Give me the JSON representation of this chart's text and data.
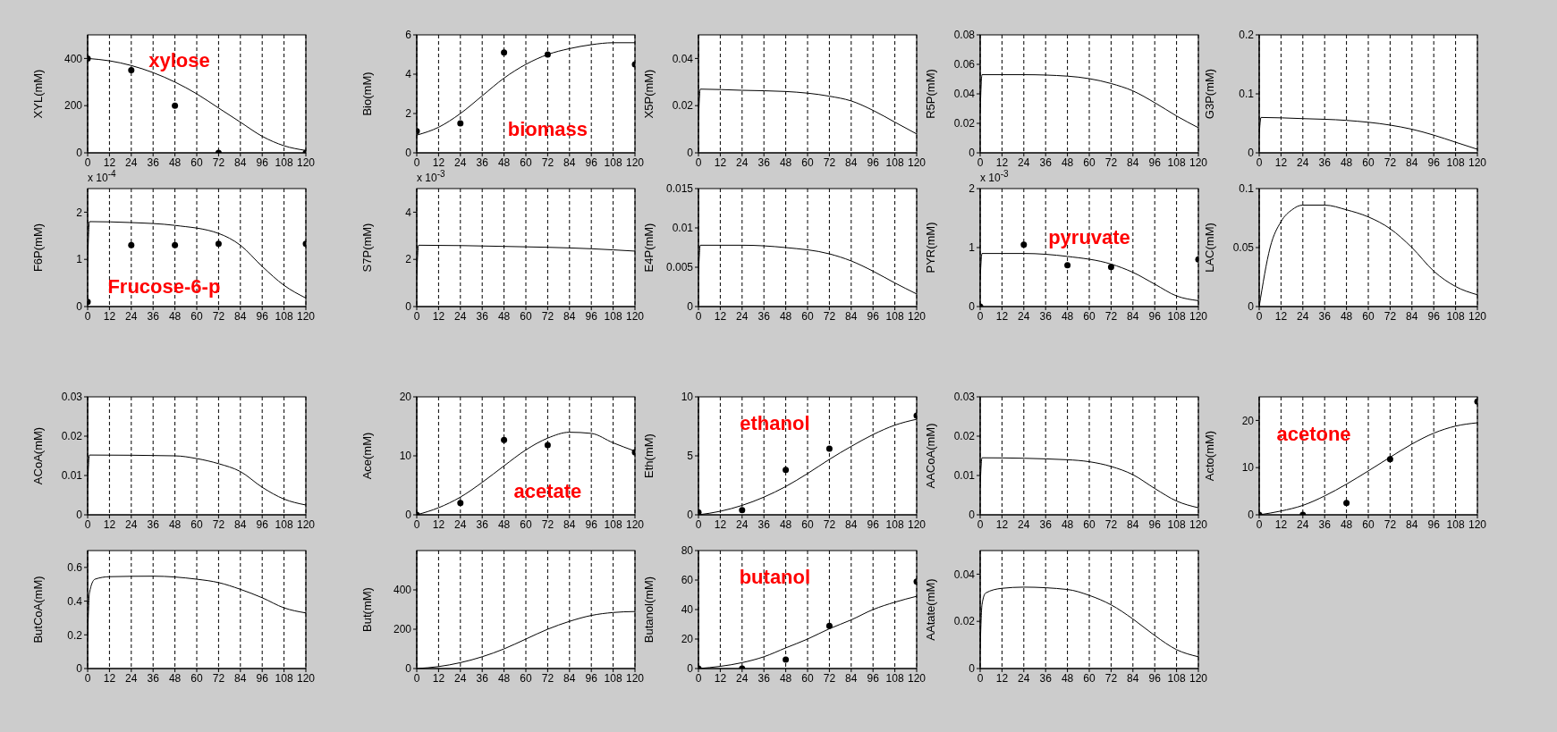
{
  "chart_data": [
    {
      "type": "line",
      "ylabel": "XYL(mM)",
      "xlim": [
        0,
        120
      ],
      "xticks": [
        0,
        12,
        24,
        36,
        48,
        60,
        72,
        84,
        96,
        108,
        120
      ],
      "ylim": [
        0,
        500
      ],
      "yticks": [
        0,
        200,
        400
      ],
      "grid": "x",
      "annotations": [
        "xylose"
      ],
      "series": [
        {
          "color": "#000000",
          "x": [
            0,
            12,
            24,
            36,
            48,
            60,
            72,
            84,
            96,
            108,
            120
          ],
          "values": [
            400,
            390,
            370,
            340,
            300,
            250,
            190,
            130,
            70,
            30,
            10
          ]
        },
        {
          "type": "scatter",
          "marker": "circle",
          "color": "#000000",
          "x": [
            0,
            24,
            48,
            72,
            120
          ],
          "values": [
            400,
            350,
            200,
            0,
            0
          ]
        }
      ]
    },
    {
      "type": "line",
      "ylabel": "Bio(mM)",
      "xlim": [
        0,
        120
      ],
      "xticks": [
        0,
        12,
        24,
        36,
        48,
        60,
        72,
        84,
        96,
        108,
        120
      ],
      "ylim": [
        0,
        6
      ],
      "yticks": [
        0,
        2,
        4,
        6
      ],
      "grid": "x",
      "annotations": [
        "biomass"
      ],
      "series": [
        {
          "color": "#000000",
          "x": [
            0,
            12,
            24,
            36,
            48,
            60,
            72,
            84,
            96,
            108,
            120
          ],
          "values": [
            0.9,
            1.3,
            2,
            2.9,
            3.8,
            4.5,
            5,
            5.3,
            5.5,
            5.6,
            5.6
          ]
        },
        {
          "type": "scatter",
          "marker": "circle",
          "color": "#000000",
          "x": [
            0,
            24,
            48,
            72,
            120
          ],
          "values": [
            1.1,
            1.5,
            5.1,
            5,
            4.5
          ]
        }
      ]
    },
    {
      "type": "line",
      "ylabel": "X5P(mM)",
      "xlim": [
        0,
        120
      ],
      "xticks": [
        0,
        12,
        24,
        36,
        48,
        60,
        72,
        84,
        96,
        108,
        120
      ],
      "ylim": [
        0,
        0.05
      ],
      "yticks": [
        0,
        0.02,
        0.04
      ],
      "grid": "x",
      "series": [
        {
          "color": "#000000",
          "x": [
            0,
            1,
            24,
            48,
            72,
            84,
            96,
            108,
            120
          ],
          "values": [
            0.014,
            0.027,
            0.0265,
            0.026,
            0.024,
            0.022,
            0.018,
            0.013,
            0.008
          ]
        }
      ]
    },
    {
      "type": "line",
      "ylabel": "R5P(mM)",
      "xlim": [
        0,
        120
      ],
      "xticks": [
        0,
        12,
        24,
        36,
        48,
        60,
        72,
        84,
        96,
        108,
        120
      ],
      "ylim": [
        0,
        0.08
      ],
      "yticks": [
        0,
        0.02,
        0.04,
        0.06,
        0.08
      ],
      "grid": "x",
      "series": [
        {
          "color": "#000000",
          "x": [
            0,
            1,
            24,
            48,
            72,
            84,
            96,
            108,
            120
          ],
          "values": [
            0.027,
            0.053,
            0.053,
            0.052,
            0.047,
            0.042,
            0.034,
            0.025,
            0.017
          ]
        }
      ]
    },
    {
      "type": "line",
      "ylabel": "G3P(mM)",
      "xlim": [
        0,
        120
      ],
      "xticks": [
        0,
        12,
        24,
        36,
        48,
        60,
        72,
        84,
        96,
        108,
        120
      ],
      "ylim": [
        0,
        0.2
      ],
      "yticks": [
        0,
        0.1,
        0.2
      ],
      "grid": "x",
      "series": [
        {
          "color": "#000000",
          "x": [
            0,
            1,
            24,
            48,
            72,
            84,
            96,
            108,
            120
          ],
          "values": [
            0.03,
            0.06,
            0.058,
            0.055,
            0.047,
            0.04,
            0.03,
            0.018,
            0.006
          ]
        }
      ]
    },
    {
      "type": "line",
      "ylabel": "F6P(mM)",
      "xlim": [
        0,
        120
      ],
      "xticks": [
        0,
        12,
        24,
        36,
        48,
        60,
        72,
        84,
        96,
        108,
        120
      ],
      "ylim": [
        0,
        2.5
      ],
      "yticks": [
        0,
        1,
        2
      ],
      "grid": "x",
      "annotations": [
        "x 10$^{-4}$",
        "Frucose-6-p"
      ],
      "series": [
        {
          "color": "#000000",
          "x": [
            0,
            1,
            24,
            48,
            72,
            84,
            96,
            108,
            120
          ],
          "values": [
            0.9,
            1.8,
            1.78,
            1.72,
            1.55,
            1.3,
            0.85,
            0.45,
            0.18
          ]
        },
        {
          "type": "scatter",
          "marker": "circle",
          "color": "#000000",
          "x": [
            0,
            24,
            48,
            72,
            120
          ],
          "values": [
            0.1,
            1.3,
            1.3,
            1.33,
            1.33
          ]
        }
      ]
    },
    {
      "type": "line",
      "ylabel": "S7P(mM)",
      "xlim": [
        0,
        120
      ],
      "xticks": [
        0,
        12,
        24,
        36,
        48,
        60,
        72,
        84,
        96,
        108,
        120
      ],
      "ylim": [
        0,
        5
      ],
      "yticks": [
        0,
        2,
        4
      ],
      "grid": "x",
      "annotations": [
        "x 10$^{-3}$"
      ],
      "series": [
        {
          "color": "#000000",
          "x": [
            0,
            1,
            48,
            96,
            120
          ],
          "values": [
            1.3,
            2.6,
            2.55,
            2.45,
            2.35
          ]
        }
      ]
    },
    {
      "type": "line",
      "ylabel": "E4P(mM)",
      "xlim": [
        0,
        120
      ],
      "xticks": [
        0,
        12,
        24,
        36,
        48,
        60,
        72,
        84,
        96,
        108,
        120
      ],
      "ylim": [
        0,
        0.015
      ],
      "yticks": [
        0,
        0.005,
        0.01,
        0.015
      ],
      "grid": "x",
      "series": [
        {
          "color": "#000000",
          "x": [
            0,
            1,
            24,
            48,
            72,
            84,
            96,
            108,
            120
          ],
          "values": [
            0.004,
            0.0078,
            0.0078,
            0.0075,
            0.0067,
            0.0058,
            0.0045,
            0.003,
            0.0016
          ]
        }
      ]
    },
    {
      "type": "line",
      "ylabel": "PYR(mM)",
      "xlim": [
        0,
        120
      ],
      "xticks": [
        0,
        12,
        24,
        36,
        48,
        60,
        72,
        84,
        96,
        108,
        120
      ],
      "ylim": [
        0,
        2
      ],
      "yticks": [
        0,
        1,
        2
      ],
      "grid": "x",
      "annotations": [
        "x 10$^{-3}$",
        "pyruvate"
      ],
      "series": [
        {
          "color": "#000000",
          "x": [
            0,
            1,
            24,
            48,
            72,
            84,
            96,
            108,
            120
          ],
          "values": [
            0.45,
            0.9,
            0.9,
            0.85,
            0.72,
            0.58,
            0.38,
            0.18,
            0.1
          ]
        },
        {
          "type": "scatter",
          "marker": "circle",
          "color": "#000000",
          "x": [
            0,
            24,
            48,
            72,
            120
          ],
          "values": [
            0,
            1.05,
            0.7,
            0.67,
            0.8
          ]
        }
      ]
    },
    {
      "type": "line",
      "ylabel": "LAC(mM)",
      "xlim": [
        0,
        120
      ],
      "xticks": [
        0,
        12,
        24,
        36,
        48,
        60,
        72,
        84,
        96,
        108,
        120
      ],
      "ylim": [
        0,
        0.1
      ],
      "yticks": [
        0,
        0.05,
        0.1
      ],
      "grid": "x",
      "series": [
        {
          "color": "#000000",
          "x": [
            0,
            6,
            12,
            18,
            24,
            36,
            48,
            60,
            72,
            84,
            96,
            108,
            120
          ],
          "values": [
            0,
            0.05,
            0.072,
            0.082,
            0.086,
            0.086,
            0.082,
            0.076,
            0.066,
            0.05,
            0.03,
            0.017,
            0.01
          ]
        }
      ]
    },
    {
      "type": "line",
      "ylabel": "ACoA(mM)",
      "xlim": [
        0,
        120
      ],
      "xticks": [
        0,
        12,
        24,
        36,
        48,
        60,
        72,
        84,
        96,
        108,
        120
      ],
      "ylim": [
        0,
        0.03
      ],
      "yticks": [
        0,
        0.01,
        0.02,
        0.03
      ],
      "grid": "x",
      "series": [
        {
          "color": "#000000",
          "x": [
            0,
            1,
            48,
            60,
            72,
            84,
            96,
            108,
            120
          ],
          "values": [
            0.0075,
            0.0152,
            0.015,
            0.0143,
            0.013,
            0.011,
            0.007,
            0.004,
            0.0025
          ]
        }
      ]
    },
    {
      "type": "line",
      "ylabel": "Ace(mM)",
      "xlim": [
        0,
        120
      ],
      "xticks": [
        0,
        12,
        24,
        36,
        48,
        60,
        72,
        84,
        96,
        108,
        120
      ],
      "ylim": [
        0,
        20
      ],
      "yticks": [
        0,
        10,
        20
      ],
      "grid": "x",
      "annotations": [
        "acetate"
      ],
      "series": [
        {
          "color": "#000000",
          "x": [
            0,
            12,
            24,
            36,
            48,
            60,
            72,
            84,
            96,
            108,
            120
          ],
          "values": [
            0,
            1.2,
            3,
            5.5,
            8.3,
            11,
            13,
            14,
            13.8,
            12.2,
            10.8
          ]
        },
        {
          "type": "scatter",
          "marker": "circle",
          "color": "#000000",
          "x": [
            0,
            24,
            48,
            72,
            120
          ],
          "values": [
            0,
            2,
            12.7,
            11.8,
            10.6
          ]
        }
      ]
    },
    {
      "type": "line",
      "ylabel": "Eth(mM)",
      "xlim": [
        0,
        120
      ],
      "xticks": [
        0,
        12,
        24,
        36,
        48,
        60,
        72,
        84,
        96,
        108,
        120
      ],
      "ylim": [
        0,
        10
      ],
      "yticks": [
        0,
        5,
        10
      ],
      "grid": "x",
      "annotations": [
        "ethanol"
      ],
      "series": [
        {
          "color": "#000000",
          "x": [
            0,
            12,
            24,
            36,
            48,
            60,
            72,
            84,
            96,
            108,
            120
          ],
          "values": [
            0,
            0.3,
            0.8,
            1.5,
            2.4,
            3.5,
            4.7,
            5.8,
            6.8,
            7.6,
            8.1
          ]
        },
        {
          "type": "scatter",
          "marker": "circle",
          "color": "#000000",
          "x": [
            0,
            24,
            48,
            72,
            120
          ],
          "values": [
            0.2,
            0.4,
            3.8,
            5.6,
            8.4
          ]
        }
      ]
    },
    {
      "type": "line",
      "ylabel": "AACoA(mM)",
      "xlim": [
        0,
        120
      ],
      "xticks": [
        0,
        12,
        24,
        36,
        48,
        60,
        72,
        84,
        96,
        108,
        120
      ],
      "ylim": [
        0,
        0.03
      ],
      "yticks": [
        0,
        0.01,
        0.02,
        0.03
      ],
      "grid": "x",
      "series": [
        {
          "color": "#000000",
          "x": [
            0,
            1,
            48,
            60,
            72,
            84,
            96,
            108,
            120
          ],
          "values": [
            0.0072,
            0.0145,
            0.014,
            0.0135,
            0.0123,
            0.0102,
            0.0067,
            0.0035,
            0.0018
          ]
        }
      ]
    },
    {
      "type": "line",
      "ylabel": "Acto(mM)",
      "xlim": [
        0,
        120
      ],
      "xticks": [
        0,
        12,
        24,
        36,
        48,
        60,
        72,
        84,
        96,
        108,
        120
      ],
      "ylim": [
        0,
        25
      ],
      "yticks": [
        0,
        10,
        20
      ],
      "grid": "x",
      "annotations": [
        "acetone"
      ],
      "series": [
        {
          "color": "#000000",
          "x": [
            0,
            12,
            24,
            36,
            48,
            60,
            72,
            84,
            96,
            108,
            120
          ],
          "values": [
            0,
            0.8,
            2,
            4,
            6.5,
            9.3,
            12.2,
            15,
            17.3,
            18.8,
            19.5
          ]
        },
        {
          "type": "scatter",
          "marker": "circle",
          "color": "#000000",
          "x": [
            0,
            24,
            48,
            72,
            120
          ],
          "values": [
            0,
            0,
            2.5,
            11.8,
            24
          ]
        }
      ]
    },
    {
      "type": "line",
      "ylabel": "ButCoA(mM)",
      "xlim": [
        0,
        120
      ],
      "xticks": [
        0,
        12,
        24,
        36,
        48,
        60,
        72,
        84,
        96,
        108,
        120
      ],
      "ylim": [
        0,
        0.7
      ],
      "yticks": [
        0,
        0.2,
        0.4,
        0.6
      ],
      "grid": "x",
      "series": [
        {
          "color": "#000000",
          "x": [
            0,
            1,
            4,
            12,
            36,
            60,
            72,
            84,
            96,
            108,
            120
          ],
          "values": [
            0.18,
            0.45,
            0.53,
            0.545,
            0.548,
            0.53,
            0.51,
            0.47,
            0.42,
            0.36,
            0.33
          ]
        }
      ]
    },
    {
      "type": "line",
      "ylabel": "But(mM)",
      "xlim": [
        0,
        120
      ],
      "xticks": [
        0,
        12,
        24,
        36,
        48,
        60,
        72,
        84,
        96,
        108,
        120
      ],
      "ylim": [
        0,
        600
      ],
      "yticks": [
        0,
        200,
        400
      ],
      "grid": "x",
      "series": [
        {
          "color": "#000000",
          "x": [
            0,
            12,
            24,
            36,
            48,
            60,
            72,
            84,
            96,
            108,
            120
          ],
          "values": [
            0,
            10,
            30,
            60,
            100,
            150,
            200,
            240,
            270,
            285,
            290
          ]
        }
      ]
    },
    {
      "type": "line",
      "ylabel": "Butanol(mM)",
      "xlim": [
        0,
        120
      ],
      "xticks": [
        0,
        12,
        24,
        36,
        48,
        60,
        72,
        84,
        96,
        108,
        120
      ],
      "ylim": [
        0,
        80
      ],
      "yticks": [
        0,
        20,
        40,
        60,
        80
      ],
      "grid": "x",
      "annotations": [
        "butanol"
      ],
      "series": [
        {
          "color": "#000000",
          "x": [
            0,
            12,
            24,
            36,
            48,
            60,
            72,
            84,
            96,
            108,
            120
          ],
          "values": [
            0,
            1.5,
            4,
            8,
            14,
            20,
            27,
            33,
            40,
            45,
            49
          ]
        },
        {
          "type": "scatter",
          "marker": "circle",
          "color": "#000000",
          "x": [
            0,
            24,
            48,
            72,
            120
          ],
          "values": [
            0,
            0,
            6,
            29,
            59
          ]
        }
      ]
    },
    {
      "type": "line",
      "ylabel": "AAtate(mM)",
      "xlim": [
        0,
        120
      ],
      "xticks": [
        0,
        12,
        24,
        36,
        48,
        60,
        72,
        84,
        96,
        108,
        120
      ],
      "ylim": [
        0,
        0.05
      ],
      "yticks": [
        0,
        0.02,
        0.04
      ],
      "grid": "x",
      "series": [
        {
          "color": "#000000",
          "x": [
            0,
            1,
            3,
            12,
            24,
            48,
            60,
            72,
            84,
            96,
            108,
            120
          ],
          "values": [
            0.008,
            0.027,
            0.032,
            0.034,
            0.0345,
            0.0335,
            0.031,
            0.027,
            0.021,
            0.014,
            0.008,
            0.005
          ]
        }
      ]
    }
  ]
}
